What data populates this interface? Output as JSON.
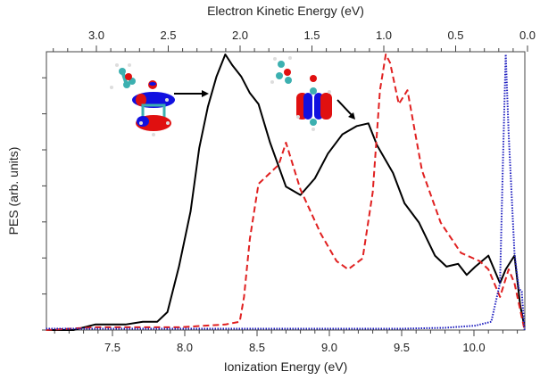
{
  "chart_data": {
    "type": "line",
    "xlabel": "Ionization Energy (eV)",
    "x2label": "Electron Kinetic Energy (eV)",
    "ylabel": "PES (arb. units)",
    "xlim": [
      7.04,
      10.35
    ],
    "ylim": [
      0,
      1
    ],
    "xticks": [
      "7.5",
      "8.0",
      "8.5",
      "9.0",
      "9.5",
      "10.0"
    ],
    "x2ticks": [
      "3.0",
      "2.5",
      "2.0",
      "1.5",
      "1.0",
      "0.5",
      "0.0"
    ],
    "grid": false,
    "legend": "none",
    "series": [
      {
        "style": "solid",
        "color": "#000000",
        "x": [
          7.04,
          7.23,
          7.38,
          7.59,
          7.71,
          7.81,
          7.88,
          7.96,
          8.04,
          8.1,
          8.16,
          8.22,
          8.28,
          8.33,
          8.39,
          8.45,
          8.51,
          8.59,
          8.7,
          8.8,
          8.9,
          8.99,
          9.09,
          9.19,
          9.27,
          9.33,
          9.44,
          9.52,
          9.62,
          9.73,
          9.81,
          9.89,
          9.95,
          10.01,
          10.1,
          10.18,
          10.22,
          10.28,
          10.32,
          10.35
        ],
        "y": [
          0,
          0,
          0.02,
          0.02,
          0.03,
          0.03,
          0.065,
          0.23,
          0.43,
          0.66,
          0.81,
          0.92,
          1.0,
          0.96,
          0.92,
          0.86,
          0.82,
          0.68,
          0.52,
          0.49,
          0.55,
          0.64,
          0.71,
          0.74,
          0.75,
          0.67,
          0.57,
          0.46,
          0.39,
          0.27,
          0.23,
          0.24,
          0.2,
          0.23,
          0.27,
          0.17,
          0.22,
          0.27,
          0.09,
          0.01
        ]
      },
      {
        "style": "dashed",
        "color": "#e02020",
        "x": [
          7.04,
          7.38,
          7.96,
          8.28,
          8.38,
          8.41,
          8.45,
          8.51,
          8.57,
          8.65,
          8.7,
          8.8,
          8.94,
          9.05,
          9.13,
          9.23,
          9.3,
          9.35,
          9.39,
          9.42,
          9.48,
          9.54,
          9.64,
          9.77,
          9.91,
          10.04,
          10.1,
          10.18,
          10.24,
          10.28,
          10.35
        ],
        "y": [
          0,
          0.01,
          0.01,
          0.02,
          0.03,
          0.12,
          0.33,
          0.53,
          0.56,
          0.6,
          0.68,
          0.51,
          0.35,
          0.25,
          0.22,
          0.26,
          0.5,
          0.87,
          1.0,
          0.97,
          0.82,
          0.87,
          0.58,
          0.39,
          0.28,
          0.25,
          0.22,
          0.12,
          0.22,
          0.17,
          0
        ]
      },
      {
        "style": "dotted",
        "color": "#2020c0",
        "x": [
          7.04,
          9.5,
          9.8,
          10.01,
          10.12,
          10.18,
          10.2,
          10.22,
          10.24,
          10.28,
          10.31,
          10.33,
          10.35
        ],
        "y": [
          0.005,
          0.005,
          0.008,
          0.016,
          0.03,
          0.17,
          0.6,
          1.0,
          0.71,
          0.28,
          0.15,
          0.14,
          0
        ]
      }
    ]
  }
}
